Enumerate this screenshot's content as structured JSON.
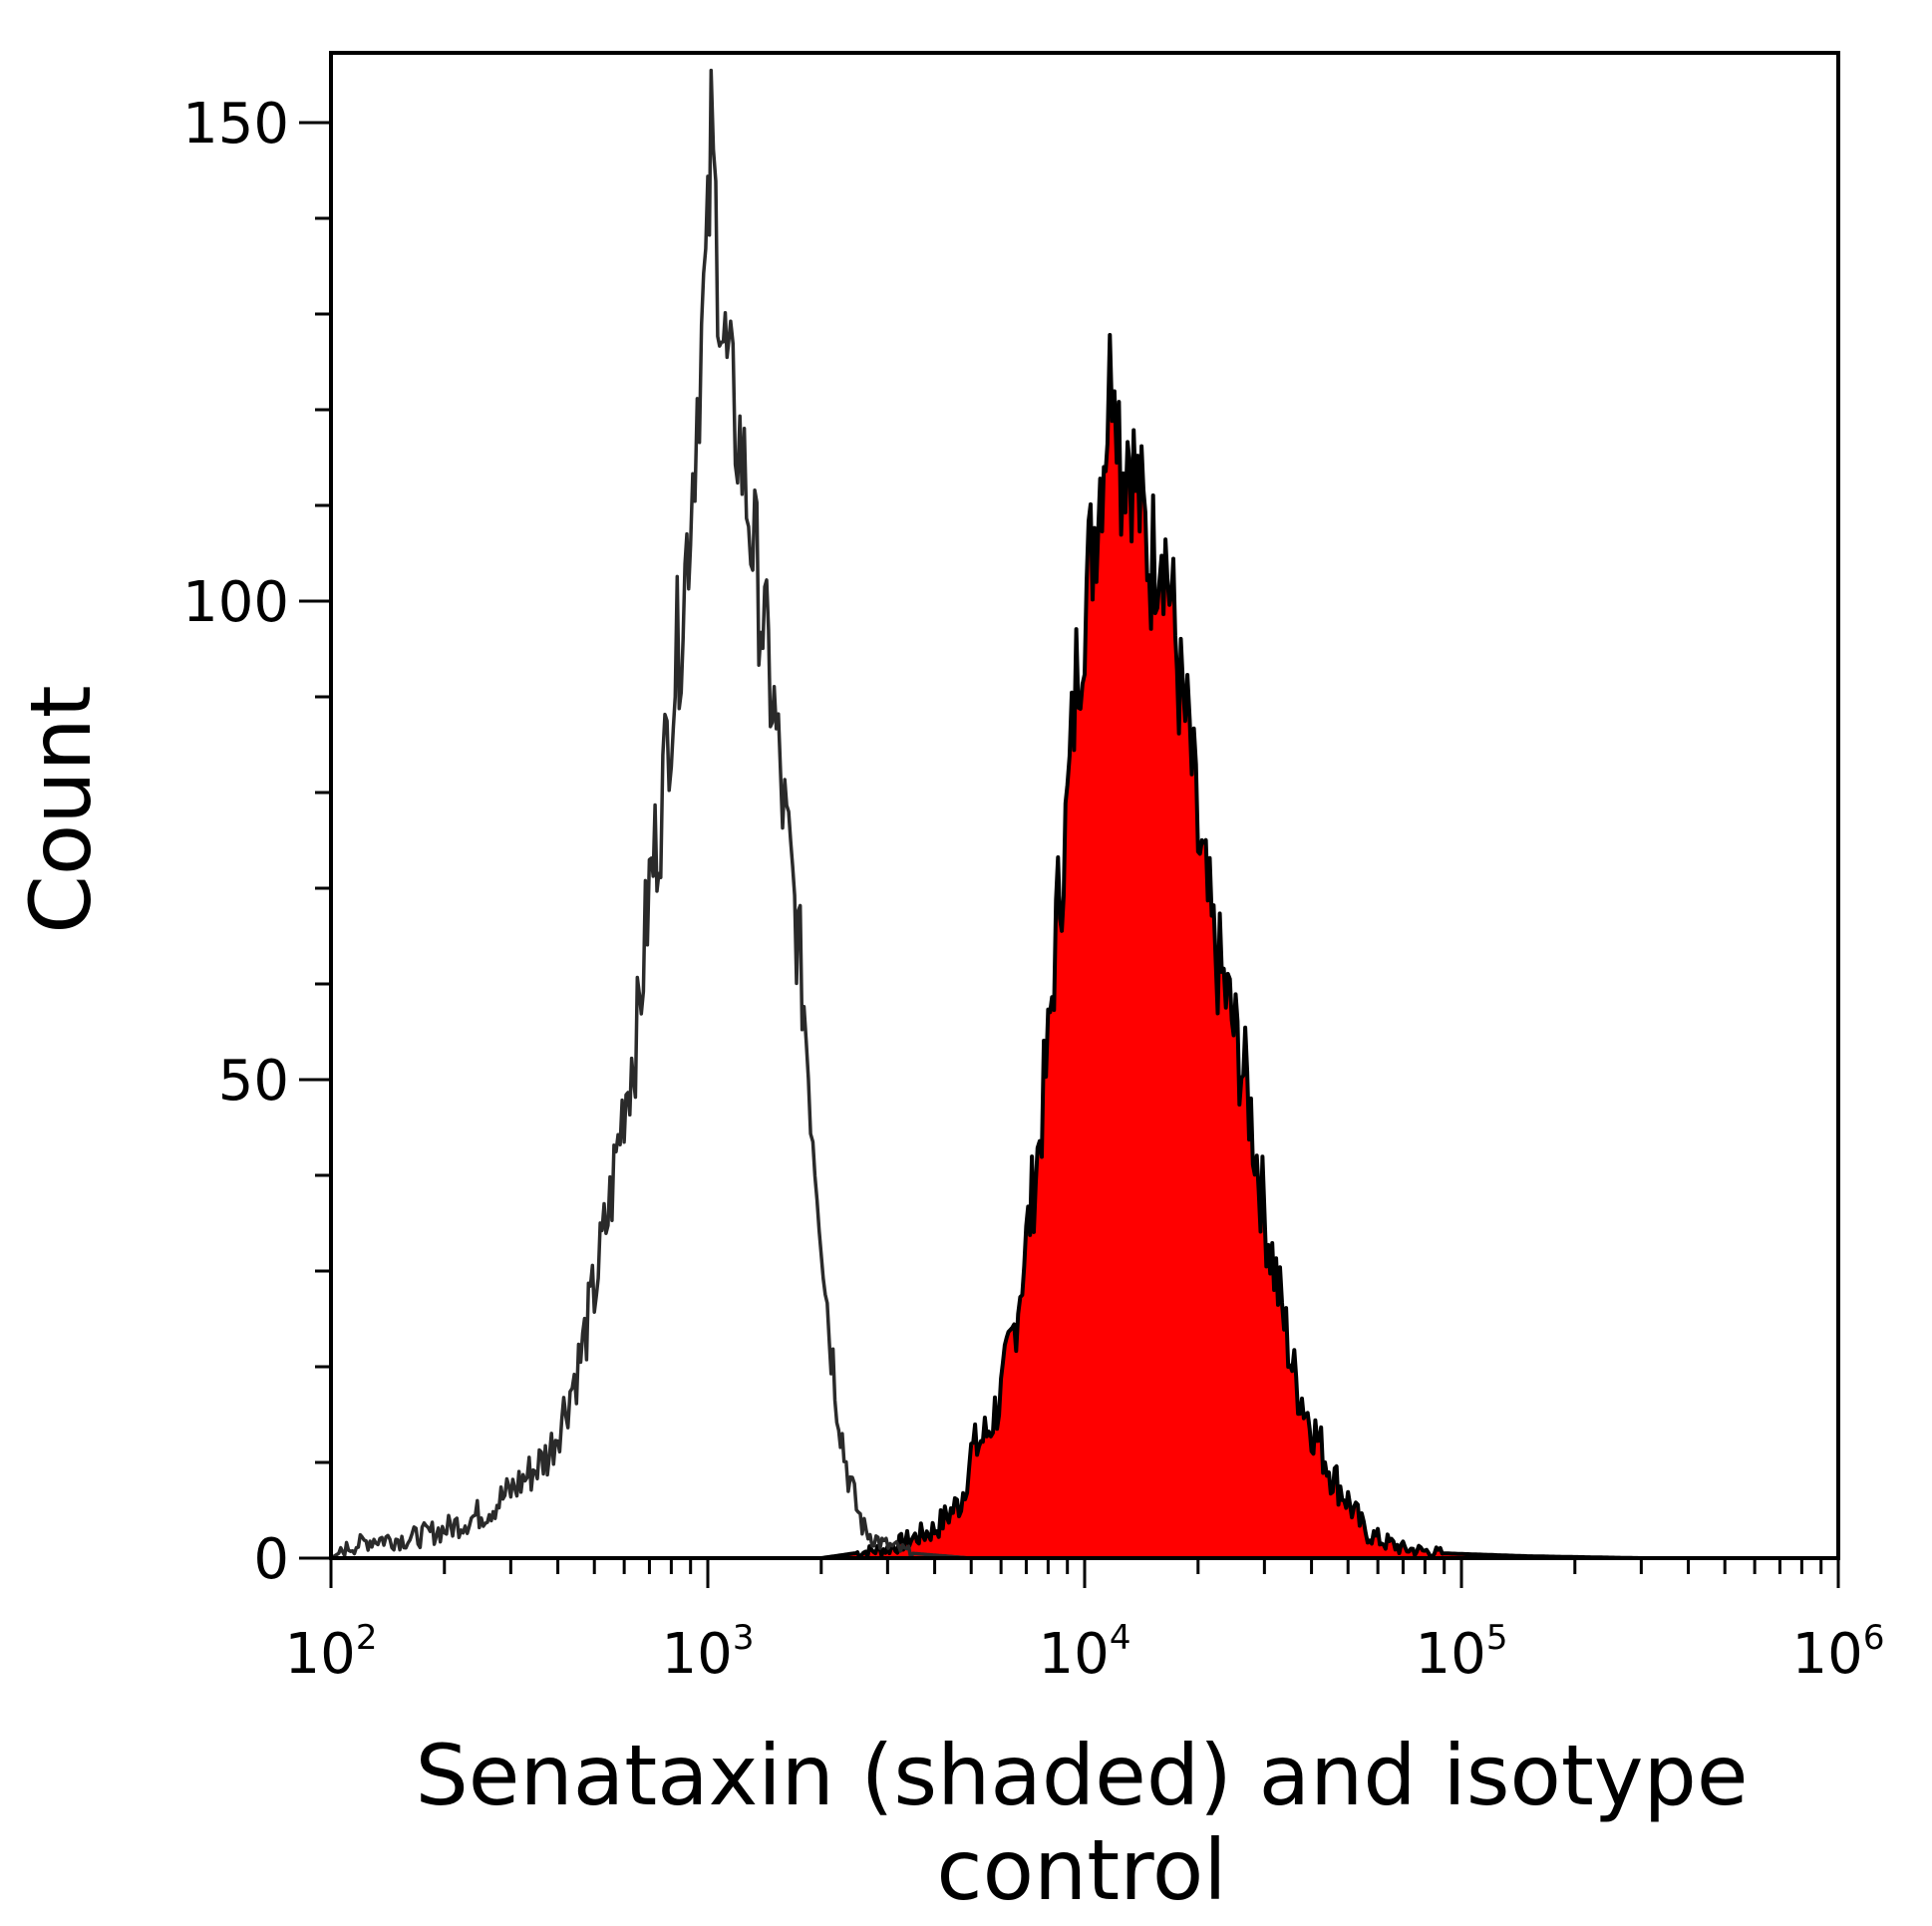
{
  "chart_data": {
    "type": "area",
    "xlabel_lines": [
      "Senataxin (shaded) and isotype",
      "control"
    ],
    "ylabel": "Count",
    "x_scale": "log10",
    "xlim": [
      100,
      1000000
    ],
    "ylim": [
      0,
      150
    ],
    "x_ticks": [
      {
        "base": "10",
        "exp": "2",
        "value": 100
      },
      {
        "base": "10",
        "exp": "3",
        "value": 1000
      },
      {
        "base": "10",
        "exp": "4",
        "value": 10000
      },
      {
        "base": "10",
        "exp": "5",
        "value": 100000
      },
      {
        "base": "10",
        "exp": "6",
        "value": 1000000
      }
    ],
    "y_ticks": [
      0,
      50,
      100,
      150
    ],
    "y_tick_labels": [
      "0",
      "50",
      "100",
      "150"
    ],
    "grid": false,
    "series": [
      {
        "role": "shaded",
        "fill": "#ff0000",
        "stroke": "#000000",
        "points": [
          [
            100,
            0
          ],
          [
            1000,
            0
          ],
          [
            2000,
            0
          ],
          [
            3000,
            1
          ],
          [
            4000,
            3
          ],
          [
            4700,
            6
          ],
          [
            5000,
            11
          ],
          [
            5500,
            13
          ],
          [
            6000,
            17
          ],
          [
            6500,
            24
          ],
          [
            7000,
            33
          ],
          [
            7500,
            42
          ],
          [
            8000,
            53
          ],
          [
            8500,
            68
          ],
          [
            9000,
            78
          ],
          [
            9500,
            92
          ],
          [
            10000,
            100
          ],
          [
            10500,
            106
          ],
          [
            11000,
            113
          ],
          [
            11500,
            120
          ],
          [
            12000,
            128
          ],
          [
            12500,
            114
          ],
          [
            13000,
            117
          ],
          [
            14000,
            110
          ],
          [
            15000,
            104
          ],
          [
            16000,
            108
          ],
          [
            17000,
            100
          ],
          [
            18000,
            90
          ],
          [
            19000,
            85
          ],
          [
            20000,
            75
          ],
          [
            22000,
            64
          ],
          [
            24000,
            58
          ],
          [
            27000,
            49
          ],
          [
            30000,
            36
          ],
          [
            33000,
            27
          ],
          [
            36000,
            19
          ],
          [
            40000,
            14
          ],
          [
            45000,
            9
          ],
          [
            50000,
            6
          ],
          [
            55000,
            3
          ],
          [
            60000,
            2
          ],
          [
            70000,
            1
          ],
          [
            90000,
            0.5
          ],
          [
            150000,
            0.2
          ],
          [
            300000,
            0
          ],
          [
            1000000,
            0
          ]
        ]
      },
      {
        "role": "isotype control",
        "fill": "none",
        "stroke": "#2a2a2a",
        "points": [
          [
            100,
            0
          ],
          [
            110,
            1
          ],
          [
            130,
            2
          ],
          [
            160,
            2
          ],
          [
            200,
            3
          ],
          [
            230,
            4
          ],
          [
            260,
            5
          ],
          [
            300,
            7
          ],
          [
            340,
            9
          ],
          [
            380,
            11
          ],
          [
            420,
            16
          ],
          [
            460,
            21
          ],
          [
            500,
            28
          ],
          [
            550,
            37
          ],
          [
            600,
            48
          ],
          [
            650,
            55
          ],
          [
            700,
            70
          ],
          [
            750,
            78
          ],
          [
            800,
            90
          ],
          [
            850,
            98
          ],
          [
            900,
            110
          ],
          [
            950,
            125
          ],
          [
            1000,
            136
          ],
          [
            1020,
            148
          ],
          [
            1050,
            140
          ],
          [
            1100,
            127
          ],
          [
            1150,
            121
          ],
          [
            1200,
            118
          ],
          [
            1250,
            113
          ],
          [
            1300,
            108
          ],
          [
            1400,
            98
          ],
          [
            1500,
            88
          ],
          [
            1600,
            77
          ],
          [
            1700,
            68
          ],
          [
            1800,
            58
          ],
          [
            1900,
            45
          ],
          [
            2000,
            35
          ],
          [
            2100,
            24
          ],
          [
            2200,
            17
          ],
          [
            2300,
            11
          ],
          [
            2450,
            6
          ],
          [
            2600,
            3
          ],
          [
            2900,
            1.5
          ],
          [
            3500,
            0.5
          ],
          [
            5000,
            0
          ],
          [
            1000000,
            0
          ]
        ]
      }
    ]
  }
}
